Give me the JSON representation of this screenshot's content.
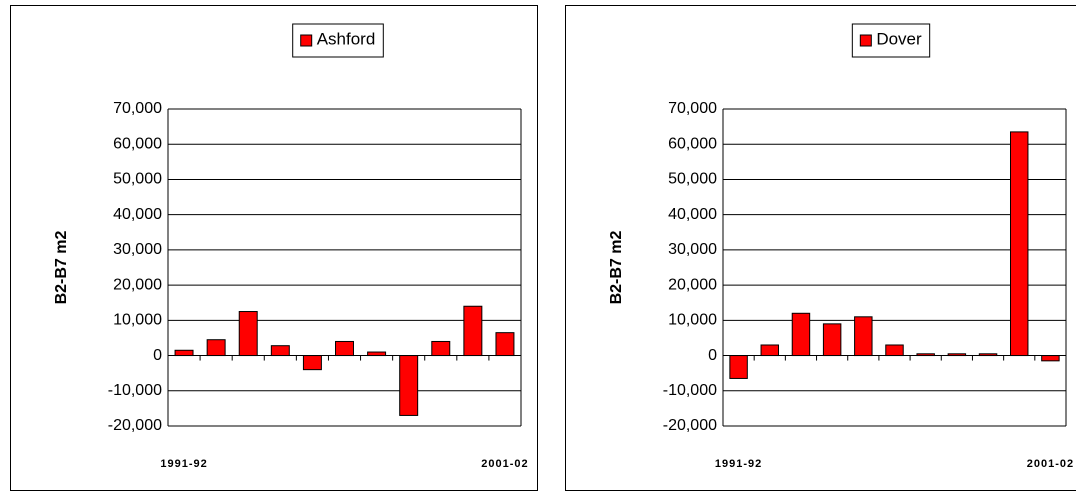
{
  "chart_data": [
    {
      "type": "bar",
      "legend_position": "top",
      "y_axis_label": "B2-B7 m2",
      "categories": [
        "1991-92",
        null,
        null,
        null,
        null,
        null,
        null,
        null,
        null,
        null,
        "2001-02"
      ],
      "series": [
        {
          "name": "Ashford",
          "color": "#ff0000",
          "values": [
            1500,
            4500,
            12500,
            2800,
            -4000,
            4000,
            1000,
            -17000,
            4000,
            14000,
            6500
          ]
        }
      ],
      "ylim": [
        -20000,
        70000
      ],
      "yticks": [
        {
          "value": -20000,
          "label": "-20,000"
        },
        {
          "value": -10000,
          "label": "-10,000"
        },
        0,
        {
          "value": 10000,
          "label": "10,000"
        },
        {
          "value": 20000,
          "label": "20,000"
        },
        {
          "value": 30000,
          "label": "30,000"
        },
        {
          "value": 40000,
          "label": "40,000"
        },
        {
          "value": 50000,
          "label": "50,000"
        },
        {
          "value": 60000,
          "label": "60,000"
        },
        {
          "value": 70000,
          "label": "70,000"
        }
      ],
      "grid": true
    },
    {
      "type": "bar",
      "legend_position": "top",
      "y_axis_label": "B2-B7 m2",
      "categories": [
        "1991-92",
        null,
        null,
        null,
        null,
        null,
        null,
        null,
        null,
        null,
        "2001-02"
      ],
      "series": [
        {
          "name": "Dover",
          "color": "#ff0000",
          "values": [
            -6500,
            3000,
            12000,
            9000,
            11000,
            3000,
            500,
            500,
            500,
            63500,
            -1500
          ]
        }
      ],
      "ylim": [
        -20000,
        70000
      ],
      "yticks": [
        {
          "value": -20000,
          "label": "-20,000"
        },
        {
          "value": -10000,
          "label": "-10,000"
        },
        0,
        {
          "value": 10000,
          "label": "10,000"
        },
        {
          "value": 20000,
          "label": "20,000"
        },
        {
          "value": 30000,
          "label": "30,000"
        },
        {
          "value": 40000,
          "label": "40,000"
        },
        {
          "value": 50000,
          "label": "50,000"
        },
        {
          "value": 60000,
          "label": "60,000"
        },
        {
          "value": 70000,
          "label": "70,000"
        }
      ],
      "grid": true
    }
  ]
}
